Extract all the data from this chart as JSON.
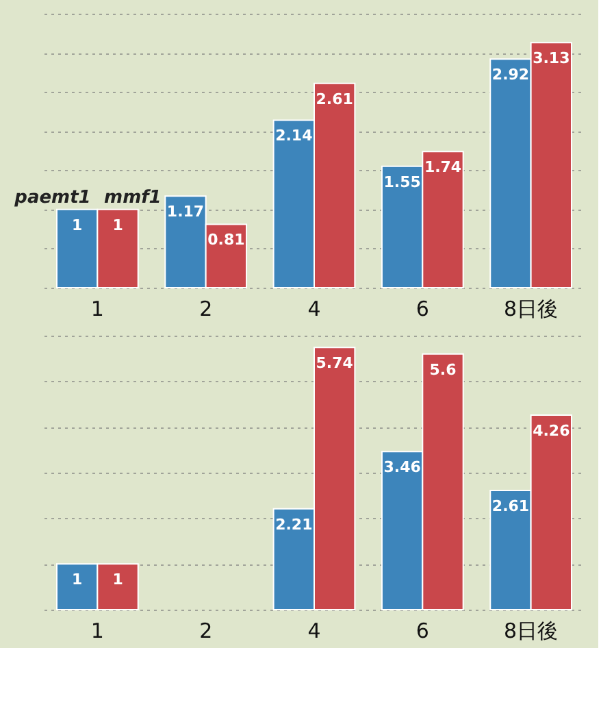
{
  "chart_data": [
    {
      "type": "bar",
      "categories": [
        "1",
        "2",
        "4",
        "6",
        "8日後"
      ],
      "grid": "y",
      "legend": false,
      "data_labels": true,
      "tick_labels": "x",
      "series": [
        {
          "name": "paemt1",
          "color": "#3d85bb",
          "values": [
            1,
            1.17,
            2.14,
            1.55,
            2.92
          ]
        },
        {
          "name": "mmf1",
          "color": "#c9474b",
          "values": [
            1,
            0.81,
            2.61,
            1.74,
            3.13
          ]
        }
      ]
    },
    {
      "type": "bar",
      "categories": [
        "1",
        "2",
        "4",
        "6",
        "8日後"
      ],
      "grid": "y",
      "legend": false,
      "data_labels": true,
      "tick_labels": "x",
      "series": [
        {
          "color": "#3d85bb",
          "values": [
            1,
            null,
            2.21,
            3.46,
            2.61
          ]
        },
        {
          "color": "#c9474b",
          "values": [
            1,
            null,
            5.74,
            5.6,
            4.26
          ]
        }
      ]
    }
  ]
}
